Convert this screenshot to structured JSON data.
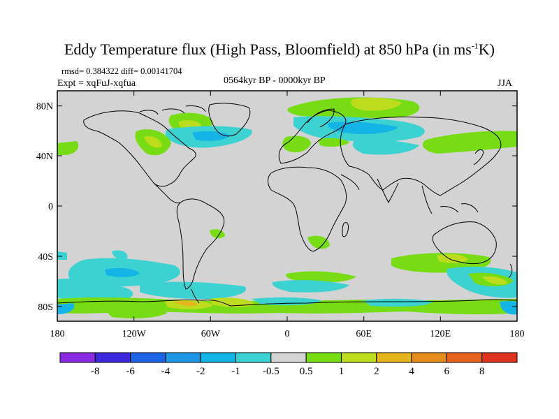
{
  "title": {
    "main": "Eddy Temperature flux (High Pass, Bloomfield) at 850 hPa (in ms",
    "superscript": "-1",
    "end": "K)"
  },
  "stats": "rmsd= 0.384322 diff= 0.00141704",
  "expt": "Expt = xqFuJ-xqfua",
  "period": "0564kyr BP - 0000kyr BP",
  "season": "JJA",
  "map": {
    "projection": "cylindrical equidistant",
    "lon_range": [
      -180,
      180
    ],
    "lat_range": [
      -90,
      90
    ],
    "x_tick_labels": [
      "180",
      "120W",
      "60W",
      "0",
      "60E",
      "120E",
      "180"
    ],
    "y_tick_labels": [
      "80N",
      "40N",
      "0",
      "40S",
      "80S"
    ],
    "background_color": "#d3d3d3"
  },
  "colorbar": {
    "labels": [
      "-8",
      "-6",
      "-4",
      "-2",
      "-1",
      "-0.5",
      "0.5",
      "1",
      "2",
      "4",
      "6",
      "8"
    ],
    "colors": [
      "#8a2be2",
      "#3c28dc",
      "#1e64e6",
      "#1e96e6",
      "#14b4e6",
      "#3cd2d2",
      "#d3d3d3",
      "#78dc14",
      "#bedc1e",
      "#e6b41e",
      "#e68c1e",
      "#e6641e",
      "#dc321e"
    ]
  }
}
